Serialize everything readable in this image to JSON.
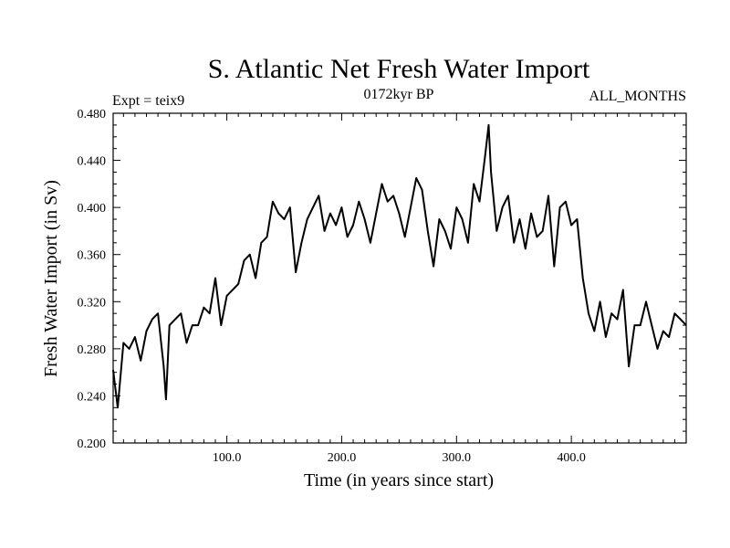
{
  "chart_data": {
    "type": "line",
    "title": "S. Atlantic Net Fresh Water Import",
    "left_label": "Expt = teix9",
    "center_label": "0172kyr BP",
    "right_label": "ALL_MONTHS",
    "xlabel": "Time (in years since start)",
    "ylabel": "Fresh Water Import (in Sv)",
    "xlim": [
      1,
      500
    ],
    "ylim": [
      0.2,
      0.48
    ],
    "x_ticks": [
      100,
      200,
      300,
      400
    ],
    "x_tick_labels": [
      "100.0",
      "200.0",
      "300.0",
      "400.0"
    ],
    "y_ticks": [
      0.2,
      0.24,
      0.28,
      0.32,
      0.36,
      0.4,
      0.44,
      0.48
    ],
    "y_tick_labels": [
      "0.200",
      "0.240",
      "0.280",
      "0.320",
      "0.360",
      "0.400",
      "0.440",
      "0.480"
    ],
    "grid": false,
    "series": [
      {
        "color": "#000000",
        "x": [
          1,
          5,
          10,
          15,
          20,
          25,
          30,
          35,
          40,
          45,
          47,
          50,
          55,
          60,
          65,
          70,
          75,
          80,
          85,
          90,
          95,
          100,
          105,
          110,
          115,
          120,
          125,
          130,
          135,
          140,
          145,
          150,
          155,
          160,
          165,
          170,
          175,
          180,
          185,
          190,
          195,
          200,
          205,
          210,
          215,
          220,
          225,
          230,
          235,
          240,
          245,
          250,
          255,
          260,
          265,
          270,
          275,
          280,
          285,
          290,
          295,
          300,
          305,
          310,
          315,
          320,
          325,
          328,
          330,
          335,
          340,
          345,
          350,
          355,
          360,
          365,
          370,
          375,
          380,
          385,
          390,
          395,
          400,
          405,
          410,
          415,
          420,
          425,
          430,
          435,
          440,
          445,
          450,
          455,
          460,
          465,
          470,
          475,
          480,
          485,
          490,
          495,
          500
        ],
        "values": [
          0.262,
          0.23,
          0.285,
          0.28,
          0.29,
          0.27,
          0.295,
          0.305,
          0.31,
          0.265,
          0.237,
          0.3,
          0.305,
          0.31,
          0.285,
          0.3,
          0.3,
          0.315,
          0.31,
          0.34,
          0.3,
          0.325,
          0.33,
          0.335,
          0.355,
          0.36,
          0.34,
          0.37,
          0.375,
          0.405,
          0.395,
          0.39,
          0.4,
          0.345,
          0.37,
          0.39,
          0.4,
          0.41,
          0.38,
          0.395,
          0.385,
          0.4,
          0.375,
          0.385,
          0.405,
          0.39,
          0.37,
          0.395,
          0.42,
          0.405,
          0.41,
          0.395,
          0.375,
          0.4,
          0.425,
          0.415,
          0.38,
          0.35,
          0.39,
          0.38,
          0.365,
          0.4,
          0.39,
          0.37,
          0.42,
          0.405,
          0.445,
          0.47,
          0.43,
          0.38,
          0.4,
          0.41,
          0.37,
          0.39,
          0.365,
          0.395,
          0.375,
          0.38,
          0.41,
          0.35,
          0.4,
          0.405,
          0.385,
          0.39,
          0.34,
          0.31,
          0.295,
          0.32,
          0.29,
          0.31,
          0.305,
          0.33,
          0.265,
          0.3,
          0.3,
          0.32,
          0.3,
          0.28,
          0.295,
          0.29,
          0.31,
          0.305,
          0.3
        ]
      }
    ]
  }
}
